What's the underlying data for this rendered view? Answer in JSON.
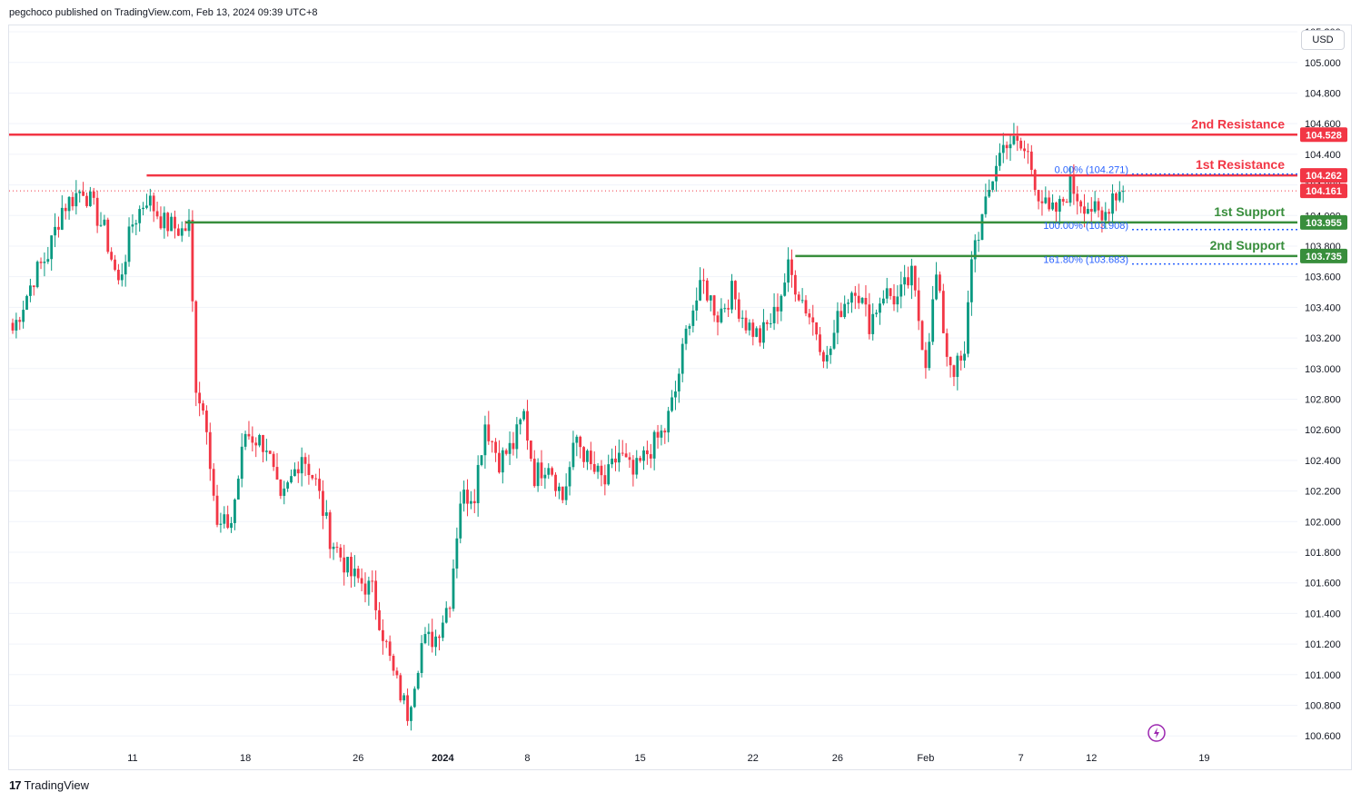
{
  "publisher_line": "pegchoco published on TradingView.com, Feb 13, 2024 09:39 UTC+8",
  "currency_button": "USD",
  "footer": {
    "logo_mark": "17",
    "logo_text": "TradingView"
  },
  "colors": {
    "up": "#089981",
    "down": "#f23645",
    "resistance": "#f23645",
    "support": "#388e3c",
    "fib": "#2962ff",
    "grid": "#f0f3fa",
    "text": "#131722",
    "lightning": "#9c27b0"
  },
  "chart_data": {
    "type": "candlestick",
    "y_axis": {
      "range": [
        100.53,
        105.23
      ],
      "ticks": [
        105.2,
        105.0,
        104.8,
        104.6,
        104.4,
        104.2,
        104.0,
        103.8,
        103.6,
        103.4,
        103.2,
        103.0,
        102.8,
        102.6,
        102.4,
        102.2,
        102.0,
        101.8,
        101.6,
        101.4,
        101.2,
        101.0,
        100.8,
        100.6
      ],
      "tick_labels": [
        "105.200",
        "105.000",
        "104.800",
        "104.600",
        "104.400",
        "104.200",
        "104.000",
        "103.800",
        "103.600",
        "103.400",
        "103.200",
        "103.000",
        "102.800",
        "102.600",
        "102.400",
        "102.200",
        "102.000",
        "101.800",
        "101.600",
        "101.400",
        "101.200",
        "101.000",
        "100.800",
        "100.600"
      ]
    },
    "x_axis": {
      "ticks": [
        {
          "label": "11",
          "bar": 34
        },
        {
          "label": "18",
          "bar": 66
        },
        {
          "label": "26",
          "bar": 98
        },
        {
          "label": "2024",
          "bar": 122
        },
        {
          "label": "8",
          "bar": 146
        },
        {
          "label": "15",
          "bar": 178
        },
        {
          "label": "22",
          "bar": 210
        },
        {
          "label": "26",
          "bar": 234
        },
        {
          "label": "Feb",
          "bar": 259
        },
        {
          "label": "7",
          "bar": 286
        },
        {
          "label": "12",
          "bar": 306
        },
        {
          "label": "19",
          "bar": 338
        }
      ],
      "total_bars": 372
    },
    "series_anchors": [
      {
        "bar": 0,
        "price": 103.25
      },
      {
        "bar": 6,
        "price": 103.6
      },
      {
        "bar": 10,
        "price": 103.75
      },
      {
        "bar": 14,
        "price": 104.05
      },
      {
        "bar": 20,
        "price": 104.18
      },
      {
        "bar": 26,
        "price": 103.9
      },
      {
        "bar": 30,
        "price": 103.55
      },
      {
        "bar": 34,
        "price": 103.95
      },
      {
        "bar": 38,
        "price": 104.12
      },
      {
        "bar": 43,
        "price": 103.95
      },
      {
        "bar": 48,
        "price": 103.9
      },
      {
        "bar": 50,
        "price": 103.93
      },
      {
        "bar": 52,
        "price": 102.9
      },
      {
        "bar": 55,
        "price": 102.65
      },
      {
        "bar": 58,
        "price": 101.95
      },
      {
        "bar": 62,
        "price": 102.0
      },
      {
        "bar": 66,
        "price": 102.58
      },
      {
        "bar": 72,
        "price": 102.5
      },
      {
        "bar": 76,
        "price": 102.1
      },
      {
        "bar": 82,
        "price": 102.45
      },
      {
        "bar": 86,
        "price": 102.25
      },
      {
        "bar": 90,
        "price": 101.9
      },
      {
        "bar": 96,
        "price": 101.65
      },
      {
        "bar": 102,
        "price": 101.55
      },
      {
        "bar": 108,
        "price": 101.0
      },
      {
        "bar": 112,
        "price": 100.75
      },
      {
        "bar": 116,
        "price": 101.2
      },
      {
        "bar": 120,
        "price": 101.25
      },
      {
        "bar": 124,
        "price": 101.5
      },
      {
        "bar": 127,
        "price": 102.15
      },
      {
        "bar": 131,
        "price": 102.2
      },
      {
        "bar": 134,
        "price": 102.65
      },
      {
        "bar": 138,
        "price": 102.4
      },
      {
        "bar": 142,
        "price": 102.5
      },
      {
        "bar": 145,
        "price": 102.7
      },
      {
        "bar": 148,
        "price": 102.3
      },
      {
        "bar": 152,
        "price": 102.4
      },
      {
        "bar": 156,
        "price": 102.15
      },
      {
        "bar": 160,
        "price": 102.55
      },
      {
        "bar": 164,
        "price": 102.35
      },
      {
        "bar": 168,
        "price": 102.25
      },
      {
        "bar": 172,
        "price": 102.45
      },
      {
        "bar": 176,
        "price": 102.3
      },
      {
        "bar": 180,
        "price": 102.45
      },
      {
        "bar": 185,
        "price": 102.6
      },
      {
        "bar": 188,
        "price": 102.85
      },
      {
        "bar": 192,
        "price": 103.35
      },
      {
        "bar": 196,
        "price": 103.55
      },
      {
        "bar": 200,
        "price": 103.35
      },
      {
        "bar": 204,
        "price": 103.5
      },
      {
        "bar": 208,
        "price": 103.3
      },
      {
        "bar": 212,
        "price": 103.2
      },
      {
        "bar": 216,
        "price": 103.35
      },
      {
        "bar": 220,
        "price": 103.65
      },
      {
        "bar": 224,
        "price": 103.45
      },
      {
        "bar": 228,
        "price": 103.25
      },
      {
        "bar": 231,
        "price": 103.05
      },
      {
        "bar": 235,
        "price": 103.4
      },
      {
        "bar": 239,
        "price": 103.55
      },
      {
        "bar": 243,
        "price": 103.3
      },
      {
        "bar": 247,
        "price": 103.5
      },
      {
        "bar": 251,
        "price": 103.45
      },
      {
        "bar": 255,
        "price": 103.6
      },
      {
        "bar": 259,
        "price": 103.05
      },
      {
        "bar": 262,
        "price": 103.6
      },
      {
        "bar": 265,
        "price": 103.1
      },
      {
        "bar": 267,
        "price": 103.0
      },
      {
        "bar": 270,
        "price": 103.05
      },
      {
        "bar": 272,
        "price": 103.75
      },
      {
        "bar": 276,
        "price": 104.05
      },
      {
        "bar": 279,
        "price": 104.35
      },
      {
        "bar": 282,
        "price": 104.5
      },
      {
        "bar": 285,
        "price": 104.45
      },
      {
        "bar": 288,
        "price": 104.4
      },
      {
        "bar": 291,
        "price": 104.15
      },
      {
        "bar": 294,
        "price": 104.0
      },
      {
        "bar": 297,
        "price": 104.05
      },
      {
        "bar": 300,
        "price": 104.2
      },
      {
        "bar": 303,
        "price": 104.1
      },
      {
        "bar": 306,
        "price": 104.05
      },
      {
        "bar": 309,
        "price": 103.95
      },
      {
        "bar": 312,
        "price": 104.15
      },
      {
        "bar": 315,
        "price": 104.161
      }
    ],
    "levels": [
      {
        "name": "2nd Resistance",
        "price": 104.528,
        "price_label": "104.528",
        "kind": "resistance",
        "start_bar": -1
      },
      {
        "name": "1st Resistance",
        "price": 104.262,
        "price_label": "104.262",
        "kind": "resistance",
        "start_bar": 38
      },
      {
        "name": "1st Support",
        "price": 103.955,
        "price_label": "103.955",
        "kind": "support",
        "start_bar": 49
      },
      {
        "name": "2nd Support",
        "price": 103.735,
        "price_label": "103.735",
        "kind": "support",
        "start_bar": 222
      }
    ],
    "fib_levels": [
      {
        "label": "0.00% (104.271)",
        "price": 104.271
      },
      {
        "label": "100.00% (103.908)",
        "price": 103.908
      },
      {
        "label": "161.80% (103.683)",
        "price": 103.683
      }
    ],
    "current_price": {
      "price": 104.161,
      "label": "104.161"
    }
  }
}
